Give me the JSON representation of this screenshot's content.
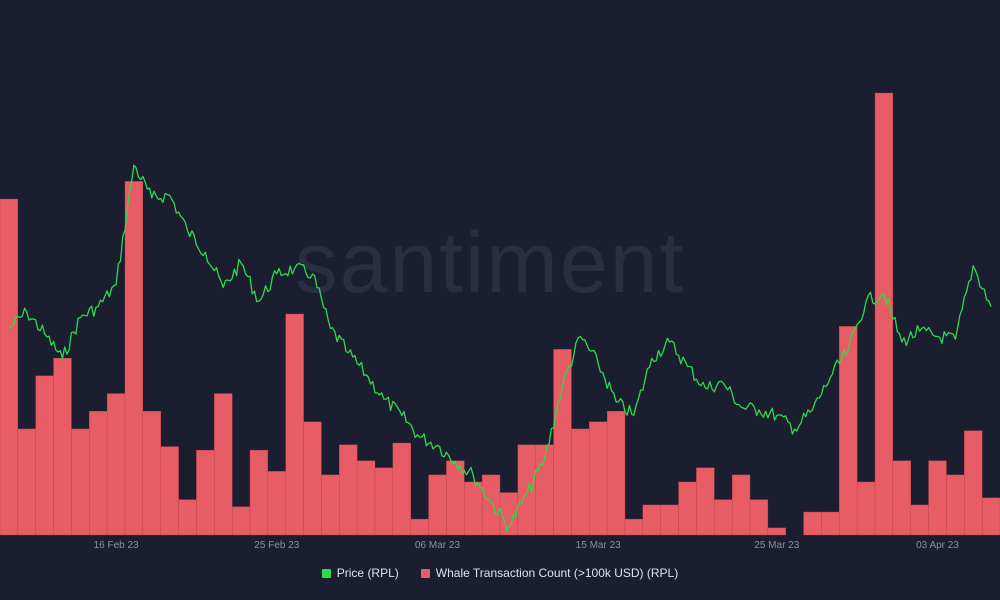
{
  "chart_data": {
    "type": "bar+line",
    "watermark": "santiment",
    "x_ticks": [
      "16 Feb 23",
      "25 Feb 23",
      "06 Mar 23",
      "15 Mar 23",
      "25 Mar 23",
      "03 Apr 23"
    ],
    "x_range": [
      "2023-02-10",
      "2023-04-06"
    ],
    "grid": false,
    "legend_position": "bottom-center",
    "series": [
      {
        "name": "Price (RPL)",
        "kind": "line",
        "color": "#2ed94e",
        "scale_range": [
          40,
          56
        ],
        "points": [
          [
            "2023-02-10",
            47.6
          ],
          [
            "2023-02-11",
            48.2
          ],
          [
            "2023-02-12",
            47.4
          ],
          [
            "2023-02-13",
            46.5
          ],
          [
            "2023-02-14",
            48.0
          ],
          [
            "2023-02-15",
            48.4
          ],
          [
            "2023-02-16",
            49.2
          ],
          [
            "2023-02-17",
            53.6
          ],
          [
            "2023-02-18",
            52.4
          ],
          [
            "2023-02-19",
            52.5
          ],
          [
            "2023-02-20",
            51.2
          ],
          [
            "2023-02-21",
            50.4
          ],
          [
            "2023-02-22",
            49.1
          ],
          [
            "2023-02-23",
            50.0
          ],
          [
            "2023-02-24",
            48.6
          ],
          [
            "2023-02-25",
            49.6
          ],
          [
            "2023-02-26",
            49.8
          ],
          [
            "2023-02-27",
            49.6
          ],
          [
            "2023-02-28",
            47.6
          ],
          [
            "2023-03-01",
            46.7
          ],
          [
            "2023-03-02",
            45.9
          ],
          [
            "2023-03-03",
            45.0
          ],
          [
            "2023-03-04",
            44.4
          ],
          [
            "2023-03-05",
            43.6
          ],
          [
            "2023-03-06",
            43.3
          ],
          [
            "2023-03-07",
            42.7
          ],
          [
            "2023-03-08",
            42.2
          ],
          [
            "2023-03-09",
            41.2
          ],
          [
            "2023-03-10",
            40.3
          ],
          [
            "2023-03-11",
            41.5
          ],
          [
            "2023-03-12",
            42.8
          ],
          [
            "2023-03-13",
            45.5
          ],
          [
            "2023-03-14",
            47.3
          ],
          [
            "2023-03-15",
            46.3
          ],
          [
            "2023-03-16",
            44.9
          ],
          [
            "2023-03-17",
            44.4
          ],
          [
            "2023-03-18",
            46.5
          ],
          [
            "2023-03-19",
            47.1
          ],
          [
            "2023-03-20",
            46.2
          ],
          [
            "2023-03-21",
            45.4
          ],
          [
            "2023-03-22",
            45.6
          ],
          [
            "2023-03-23",
            44.7
          ],
          [
            "2023-03-24",
            44.6
          ],
          [
            "2023-03-25",
            44.4
          ],
          [
            "2023-03-26",
            43.9
          ],
          [
            "2023-03-27",
            44.6
          ],
          [
            "2023-03-28",
            45.8
          ],
          [
            "2023-03-29",
            46.8
          ],
          [
            "2023-03-30",
            48.6
          ],
          [
            "2023-03-31",
            48.9
          ],
          [
            "2023-04-01",
            47.1
          ],
          [
            "2023-04-02",
            47.5
          ],
          [
            "2023-04-03",
            47.3
          ],
          [
            "2023-04-04",
            47.2
          ],
          [
            "2023-04-05",
            49.9
          ],
          [
            "2023-04-06",
            48.4
          ]
        ]
      },
      {
        "name": "Whale Transaction Count (>100k USD) (RPL)",
        "kind": "bar",
        "color": "#e85d65",
        "ylim": [
          0,
          25
        ],
        "bars": [
          [
            "2023-02-10",
            19
          ],
          [
            "2023-02-11",
            6
          ],
          [
            "2023-02-12",
            9
          ],
          [
            "2023-02-13",
            10
          ],
          [
            "2023-02-14",
            6
          ],
          [
            "2023-02-15",
            7
          ],
          [
            "2023-02-16",
            8
          ],
          [
            "2023-02-17",
            20
          ],
          [
            "2023-02-18",
            7
          ],
          [
            "2023-02-19",
            5
          ],
          [
            "2023-02-20",
            2
          ],
          [
            "2023-02-21",
            4.8
          ],
          [
            "2023-02-22",
            8
          ],
          [
            "2023-02-23",
            1.6
          ],
          [
            "2023-02-24",
            4.8
          ],
          [
            "2023-02-25",
            3.6
          ],
          [
            "2023-02-26",
            12.5
          ],
          [
            "2023-02-27",
            6.4
          ],
          [
            "2023-02-28",
            3.4
          ],
          [
            "2023-03-01",
            5.1
          ],
          [
            "2023-03-02",
            4.2
          ],
          [
            "2023-03-03",
            3.8
          ],
          [
            "2023-03-04",
            5.2
          ],
          [
            "2023-03-05",
            0.9
          ],
          [
            "2023-03-06",
            3.4
          ],
          [
            "2023-03-07",
            4.2
          ],
          [
            "2023-03-08",
            3.0
          ],
          [
            "2023-03-09",
            3.4
          ],
          [
            "2023-03-10",
            2.4
          ],
          [
            "2023-03-11",
            5.1
          ],
          [
            "2023-03-12",
            5.1
          ],
          [
            "2023-03-13",
            10.5
          ],
          [
            "2023-03-14",
            6.0
          ],
          [
            "2023-03-15",
            6.4
          ],
          [
            "2023-03-16",
            7.0
          ],
          [
            "2023-03-17",
            0.9
          ],
          [
            "2023-03-18",
            1.7
          ],
          [
            "2023-03-19",
            1.7
          ],
          [
            "2023-03-20",
            3.0
          ],
          [
            "2023-03-21",
            3.8
          ],
          [
            "2023-03-22",
            2.0
          ],
          [
            "2023-03-23",
            3.4
          ],
          [
            "2023-03-24",
            2.0
          ],
          [
            "2023-03-25",
            0.4
          ],
          [
            "2023-03-26",
            0
          ],
          [
            "2023-03-27",
            1.3
          ],
          [
            "2023-03-28",
            1.3
          ],
          [
            "2023-03-29",
            11.8
          ],
          [
            "2023-03-30",
            3.0
          ],
          [
            "2023-03-31",
            25
          ],
          [
            "2023-04-01",
            4.2
          ],
          [
            "2023-04-02",
            1.7
          ],
          [
            "2023-04-03",
            4.2
          ],
          [
            "2023-04-04",
            3.4
          ],
          [
            "2023-04-05",
            5.9
          ],
          [
            "2023-04-06",
            2.1
          ]
        ]
      }
    ]
  },
  "legend": {
    "items": [
      {
        "label": "Price (RPL)",
        "color": "#2ed94e"
      },
      {
        "label": "Whale Transaction Count (>100k USD) (RPL)",
        "color": "#e85d65"
      }
    ]
  }
}
